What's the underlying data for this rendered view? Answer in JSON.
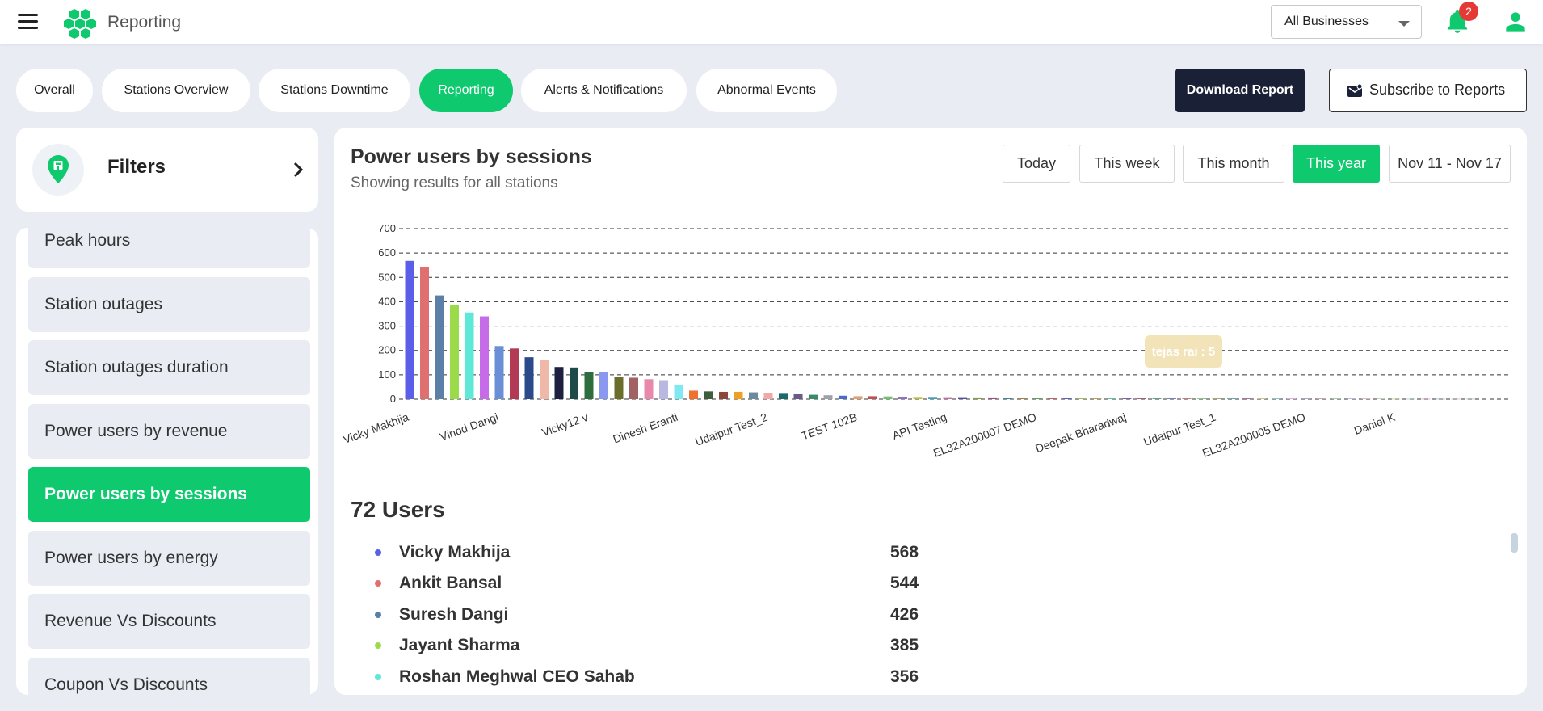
{
  "header": {
    "app_title": "Reporting",
    "business_select": "All Businesses",
    "notification_count": "2",
    "brand_color": "#0fc96f"
  },
  "tabs": [
    {
      "label": "Overall"
    },
    {
      "label": "Stations Overview"
    },
    {
      "label": "Stations Downtime"
    },
    {
      "label": "Reporting"
    },
    {
      "label": "Alerts & Notifications"
    },
    {
      "label": "Abnormal Events"
    }
  ],
  "active_tab": "Reporting",
  "actions": {
    "download": "Download Report",
    "subscribe": "Subscribe to Reports"
  },
  "filters": {
    "title": "Filters"
  },
  "sidebar": {
    "items": [
      {
        "label": "Peak hours"
      },
      {
        "label": "Station outages"
      },
      {
        "label": "Station outages duration"
      },
      {
        "label": "Power users by revenue"
      },
      {
        "label": "Power users by sessions"
      },
      {
        "label": "Power users by energy"
      },
      {
        "label": "Revenue Vs Discounts"
      },
      {
        "label": "Coupon Vs Discounts"
      }
    ],
    "active": "Power users by sessions"
  },
  "report": {
    "title": "Power users by sessions",
    "subtitle": "Showing results for all stations",
    "ranges": [
      {
        "label": "Today"
      },
      {
        "label": "This week"
      },
      {
        "label": "This month"
      },
      {
        "label": "This year"
      },
      {
        "label": "Nov 11 - Nov 17"
      }
    ],
    "active_range": "This year",
    "users_count": "72 Users",
    "users": [
      {
        "name": "Vicky Makhija",
        "value": "568",
        "color": "#5b5ee8"
      },
      {
        "name": "Ankit Bansal",
        "value": "544",
        "color": "#e07070"
      },
      {
        "name": "Suresh Dangi",
        "value": "426",
        "color": "#5b7fa6"
      },
      {
        "name": "Jayant Sharma",
        "value": "385",
        "color": "#9bdb4a"
      },
      {
        "name": "Roshan Meghwal CEO Sahab",
        "value": "356",
        "color": "#5fe8d8"
      }
    ]
  },
  "chart_data": {
    "type": "bar",
    "title": "",
    "xlabel": "",
    "ylabel": "",
    "ylim": [
      0,
      700
    ],
    "yticks": [
      0,
      100,
      200,
      300,
      400,
      500,
      600,
      700
    ],
    "grid": true,
    "x_tick_labels": [
      "Vicky Makhija",
      "Vinod Dangi",
      "Vicky12 v",
      "Dinesh Eranti",
      "Udaipur Test_2",
      "TEST 102B",
      "API Testing",
      "EL32A200007 DEMO",
      "Deepak Bharadwaj",
      "Udaipur Test_1",
      "EL32A200005 DEMO",
      "Daniel K"
    ],
    "values": [
      568,
      544,
      426,
      385,
      356,
      340,
      218,
      208,
      172,
      160,
      132,
      130,
      112,
      110,
      90,
      88,
      82,
      78,
      60,
      35,
      32,
      30,
      30,
      28,
      26,
      22,
      20,
      18,
      16,
      14,
      12,
      12,
      11,
      10,
      9,
      9,
      8,
      8,
      7,
      7,
      6,
      6,
      6,
      5,
      5,
      5,
      5,
      5,
      4,
      4,
      4,
      4,
      4,
      3,
      3,
      3,
      3,
      3,
      3,
      2,
      2,
      2,
      2,
      2,
      2,
      2,
      1,
      1,
      1,
      1,
      1,
      1
    ],
    "colors": [
      "#5b5ee8",
      "#e07070",
      "#5b7fa6",
      "#9bdb4a",
      "#5fe8d8",
      "#c66ce8",
      "#6b8fd6",
      "#b23a55",
      "#2a4a8a",
      "#f0b8a8",
      "#1e2040",
      "#1f4a4a",
      "#2e6e3e",
      "#8a98f0",
      "#6b6e2a",
      "#a06262",
      "#e888aa",
      "#b8b8e0",
      "#7fe8f0",
      "#f07030",
      "#3e5e3e",
      "#8a4a3a",
      "#f0a020",
      "#6a8aa0",
      "#f0a8a8",
      "#1a6a6a",
      "#6a5a8a",
      "#3a8a6a",
      "#a0a0b0",
      "#4a6ac8",
      "#e0a070",
      "#c05050",
      "#70c070",
      "#9070c0",
      "#c0c040",
      "#40a0c0",
      "#c070a0",
      "#5050a0",
      "#80a040",
      "#a05080",
      "#4080a0",
      "#a08040",
      "#60a060",
      "#c06060",
      "#6060c0",
      "#a0c060",
      "#c0a060",
      "#60c0a0",
      "#8060a0",
      "#a06080",
      "#60a080",
      "#8080c0",
      "#c08080",
      "#80c080",
      "#a0a060",
      "#60a0a0",
      "#a060a0",
      "#c0c080",
      "#80c0c0",
      "#c080c0",
      "#7070a0",
      "#a07070",
      "#70a070",
      "#9090c0",
      "#c09090",
      "#90c090",
      "#b0b070",
      "#70b0b0",
      "#b070b0",
      "#8888aa",
      "#aa8888",
      "#88aa88"
    ],
    "tooltip": "tejas rai : 5",
    "tooltip_index": 47
  }
}
